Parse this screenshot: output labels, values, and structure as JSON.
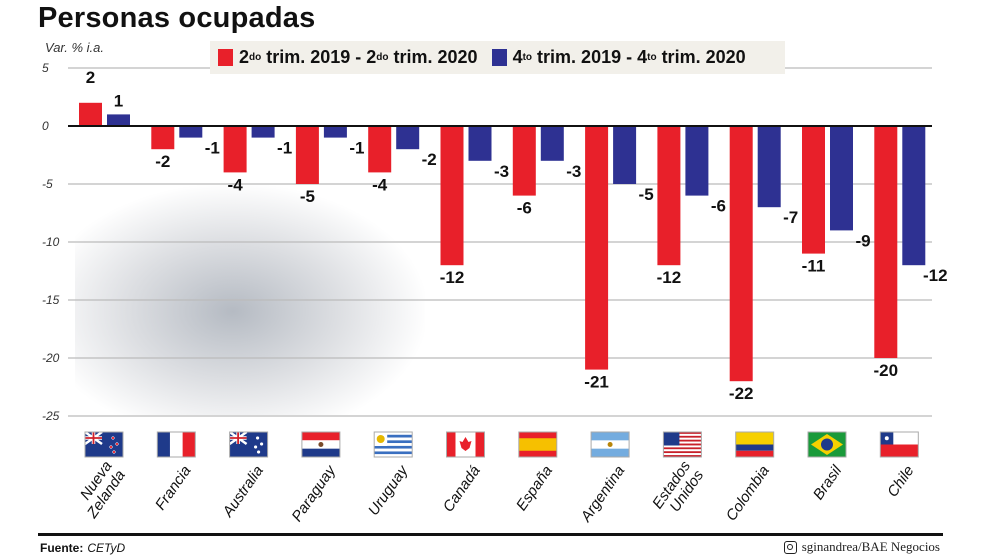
{
  "chart_data": {
    "type": "bar",
    "title": "Personas ocupadas",
    "ylabel": "Var. % i.a.",
    "ylim": [
      -25,
      5
    ],
    "yticks": [
      5,
      0,
      -5,
      -10,
      -15,
      -20,
      -25
    ],
    "grid": true,
    "legend_placement": "top",
    "categories": [
      "Nueva Zelanda",
      "Francia",
      "Australia",
      "Paraguay",
      "Uruguay",
      "Canadá",
      "España",
      "Argentina",
      "Estados Unidos",
      "Colombia",
      "Brasil",
      "Chile"
    ],
    "category_lines": [
      [
        "Nueva",
        "Zelanda"
      ],
      [
        "Francia"
      ],
      [
        "Australia"
      ],
      [
        "Paraguay"
      ],
      [
        "Uruguay"
      ],
      [
        "Canadá"
      ],
      [
        "España"
      ],
      [
        "Argentina"
      ],
      [
        "Estados",
        "Unidos"
      ],
      [
        "Colombia"
      ],
      [
        "Brasil"
      ],
      [
        "Chile"
      ]
    ],
    "flags": [
      "flag-new-zealand",
      "flag-france",
      "flag-australia",
      "flag-paraguay",
      "flag-uruguay",
      "flag-canada",
      "flag-spain",
      "flag-argentina",
      "flag-united-states",
      "flag-colombia",
      "flag-brazil",
      "flag-chile"
    ],
    "series": [
      {
        "name": "2do trim. 2019 - 2do trim. 2020",
        "name_parts": [
          "2",
          "do",
          " trim. 2019 - 2",
          "do",
          " trim. 2020"
        ],
        "color": "#e8202a",
        "values": [
          2,
          -2,
          -4,
          -5,
          -4,
          -12,
          -6,
          -21,
          -12,
          -22,
          -11,
          -20
        ]
      },
      {
        "name": "4to trim. 2019 - 4to trim. 2020",
        "name_parts": [
          "4",
          "to",
          " trim. 2019 - 4",
          "to",
          " trim. 2020"
        ],
        "color": "#2e3192",
        "values": [
          1,
          -1,
          -1,
          -1,
          -2,
          -3,
          -3,
          -5,
          -6,
          -7,
          -9,
          -12
        ]
      }
    ]
  },
  "footer": {
    "source_label": "Fuente:",
    "source_value": "CETyD",
    "credit": "sginandrea/BAE Negocios",
    "credit_icon": "instagram-icon"
  }
}
